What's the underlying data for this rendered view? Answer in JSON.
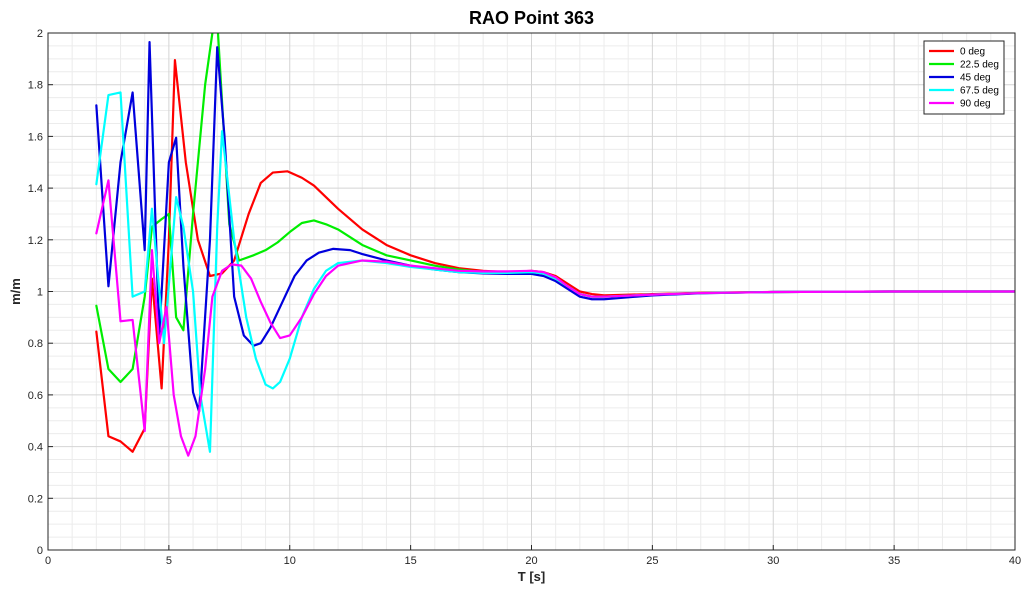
{
  "chart_data": {
    "type": "line",
    "title": "RAO Point 363",
    "xlabel": "T [s]",
    "ylabel": "m/m",
    "xlim": [
      0,
      40
    ],
    "ylim": [
      0,
      2
    ],
    "xticks": [
      "0",
      "5",
      "10",
      "15",
      "20",
      "25",
      "30",
      "35",
      "40"
    ],
    "yticks": [
      "0",
      "0.2",
      "0.4",
      "0.6",
      "0.8",
      "1",
      "1.2",
      "1.4",
      "1.6",
      "1.8",
      "2"
    ],
    "grid": true,
    "minor_grid": true,
    "legend_position": "top-right",
    "series": [
      {
        "name": "0 deg",
        "color": "#ff0000",
        "points": [
          [
            2.0,
            0.845
          ],
          [
            2.5,
            0.44
          ],
          [
            3.0,
            0.42
          ],
          [
            3.5,
            0.38
          ],
          [
            4.0,
            0.47
          ],
          [
            4.3,
            1.05
          ],
          [
            4.7,
            0.625
          ],
          [
            5.0,
            1.2
          ],
          [
            5.25,
            1.895
          ],
          [
            5.7,
            1.5
          ],
          [
            6.2,
            1.2
          ],
          [
            6.7,
            1.06
          ],
          [
            7.2,
            1.07
          ],
          [
            7.7,
            1.12
          ],
          [
            8.3,
            1.3
          ],
          [
            8.8,
            1.42
          ],
          [
            9.3,
            1.46
          ],
          [
            9.9,
            1.465
          ],
          [
            10.5,
            1.44
          ],
          [
            11.0,
            1.41
          ],
          [
            12.0,
            1.32
          ],
          [
            13.0,
            1.24
          ],
          [
            14.0,
            1.18
          ],
          [
            15.0,
            1.14
          ],
          [
            16.0,
            1.11
          ],
          [
            17.0,
            1.09
          ],
          [
            18.0,
            1.08
          ],
          [
            19.0,
            1.075
          ],
          [
            20.0,
            1.08
          ],
          [
            20.5,
            1.075
          ],
          [
            21.0,
            1.06
          ],
          [
            21.5,
            1.03
          ],
          [
            22.0,
            1.0
          ],
          [
            22.5,
            0.99
          ],
          [
            23.0,
            0.985
          ],
          [
            25.0,
            0.99
          ],
          [
            27.0,
            0.995
          ],
          [
            30.0,
            0.998
          ],
          [
            35.0,
            1.0
          ],
          [
            40.0,
            1.0
          ]
        ]
      },
      {
        "name": "22.5 deg",
        "color": "#00ee00",
        "points": [
          [
            2.0,
            0.945
          ],
          [
            2.5,
            0.7
          ],
          [
            3.0,
            0.65
          ],
          [
            3.5,
            0.7
          ],
          [
            4.0,
            0.98
          ],
          [
            4.3,
            1.25
          ],
          [
            4.7,
            1.28
          ],
          [
            5.0,
            1.3
          ],
          [
            5.3,
            0.9
          ],
          [
            5.6,
            0.85
          ],
          [
            6.0,
            1.3
          ],
          [
            6.5,
            1.8
          ],
          [
            6.8,
            2.0
          ],
          [
            7.0,
            2.05
          ],
          [
            7.5,
            1.26
          ],
          [
            7.9,
            1.12
          ],
          [
            8.5,
            1.14
          ],
          [
            9.0,
            1.16
          ],
          [
            9.5,
            1.19
          ],
          [
            10.0,
            1.23
          ],
          [
            10.5,
            1.265
          ],
          [
            11.0,
            1.275
          ],
          [
            11.5,
            1.26
          ],
          [
            12.0,
            1.24
          ],
          [
            13.0,
            1.18
          ],
          [
            14.0,
            1.14
          ],
          [
            15.0,
            1.12
          ],
          [
            16.0,
            1.1
          ],
          [
            17.0,
            1.085
          ],
          [
            18.0,
            1.075
          ],
          [
            19.0,
            1.075
          ],
          [
            20.0,
            1.075
          ],
          [
            20.5,
            1.07
          ],
          [
            21.0,
            1.05
          ],
          [
            21.5,
            1.02
          ],
          [
            22.0,
            0.99
          ],
          [
            22.5,
            0.98
          ],
          [
            23.0,
            0.98
          ],
          [
            25.0,
            0.988
          ],
          [
            27.0,
            0.994
          ],
          [
            30.0,
            0.998
          ],
          [
            35.0,
            1.0
          ],
          [
            40.0,
            1.0
          ]
        ]
      },
      {
        "name": "45 deg",
        "color": "#0000dd",
        "points": [
          [
            2.0,
            1.72
          ],
          [
            2.5,
            1.02
          ],
          [
            3.0,
            1.5
          ],
          [
            3.5,
            1.77
          ],
          [
            4.0,
            1.16
          ],
          [
            4.2,
            1.965
          ],
          [
            4.6,
            0.83
          ],
          [
            5.0,
            1.5
          ],
          [
            5.3,
            1.595
          ],
          [
            5.6,
            1.1
          ],
          [
            6.0,
            0.61
          ],
          [
            6.25,
            0.535
          ],
          [
            6.7,
            1.2
          ],
          [
            7.0,
            1.945
          ],
          [
            7.3,
            1.6
          ],
          [
            7.7,
            0.98
          ],
          [
            8.1,
            0.83
          ],
          [
            8.5,
            0.79
          ],
          [
            8.8,
            0.8
          ],
          [
            9.2,
            0.86
          ],
          [
            9.7,
            0.96
          ],
          [
            10.2,
            1.06
          ],
          [
            10.7,
            1.12
          ],
          [
            11.2,
            1.15
          ],
          [
            11.8,
            1.165
          ],
          [
            12.5,
            1.16
          ],
          [
            13.0,
            1.145
          ],
          [
            14.0,
            1.12
          ],
          [
            15.0,
            1.1
          ],
          [
            16.0,
            1.085
          ],
          [
            17.0,
            1.075
          ],
          [
            18.0,
            1.07
          ],
          [
            19.0,
            1.068
          ],
          [
            20.0,
            1.068
          ],
          [
            20.5,
            1.06
          ],
          [
            21.0,
            1.04
          ],
          [
            21.5,
            1.01
          ],
          [
            22.0,
            0.98
          ],
          [
            22.5,
            0.97
          ],
          [
            23.0,
            0.97
          ],
          [
            25.0,
            0.985
          ],
          [
            27.0,
            0.993
          ],
          [
            30.0,
            0.998
          ],
          [
            35.0,
            1.0
          ],
          [
            40.0,
            1.0
          ]
        ]
      },
      {
        "name": "67.5 deg",
        "color": "#00ffff",
        "points": [
          [
            2.0,
            1.415
          ],
          [
            2.5,
            1.76
          ],
          [
            3.0,
            1.77
          ],
          [
            3.5,
            0.98
          ],
          [
            4.0,
            1.0
          ],
          [
            4.3,
            1.32
          ],
          [
            4.8,
            0.8
          ],
          [
            5.3,
            1.365
          ],
          [
            5.6,
            1.25
          ],
          [
            6.0,
            1.0
          ],
          [
            6.3,
            0.6
          ],
          [
            6.7,
            0.38
          ],
          [
            7.0,
            1.25
          ],
          [
            7.2,
            1.62
          ],
          [
            7.7,
            1.2
          ],
          [
            8.2,
            0.9
          ],
          [
            8.6,
            0.74
          ],
          [
            9.0,
            0.64
          ],
          [
            9.3,
            0.625
          ],
          [
            9.6,
            0.65
          ],
          [
            10.0,
            0.74
          ],
          [
            10.5,
            0.9
          ],
          [
            11.0,
            1.01
          ],
          [
            11.5,
            1.08
          ],
          [
            12.0,
            1.11
          ],
          [
            13.0,
            1.12
          ],
          [
            14.0,
            1.11
          ],
          [
            15.0,
            1.095
          ],
          [
            16.0,
            1.085
          ],
          [
            17.0,
            1.075
          ],
          [
            18.0,
            1.072
          ],
          [
            19.0,
            1.072
          ],
          [
            20.0,
            1.075
          ],
          [
            20.5,
            1.07
          ],
          [
            21.0,
            1.05
          ],
          [
            21.5,
            1.02
          ],
          [
            22.0,
            0.99
          ],
          [
            22.5,
            0.98
          ],
          [
            23.0,
            0.98
          ],
          [
            25.0,
            0.988
          ],
          [
            27.0,
            0.994
          ],
          [
            30.0,
            0.998
          ],
          [
            35.0,
            1.0
          ],
          [
            40.0,
            1.0
          ]
        ]
      },
      {
        "name": "90 deg",
        "color": "#ff00ff",
        "points": [
          [
            2.0,
            1.225
          ],
          [
            2.5,
            1.43
          ],
          [
            3.0,
            0.885
          ],
          [
            3.5,
            0.89
          ],
          [
            4.0,
            0.46
          ],
          [
            4.3,
            1.16
          ],
          [
            4.6,
            0.8
          ],
          [
            4.9,
            0.94
          ],
          [
            5.2,
            0.6
          ],
          [
            5.5,
            0.44
          ],
          [
            5.8,
            0.365
          ],
          [
            6.1,
            0.44
          ],
          [
            6.5,
            0.7
          ],
          [
            6.8,
            0.98
          ],
          [
            7.2,
            1.08
          ],
          [
            7.6,
            1.105
          ],
          [
            8.0,
            1.1
          ],
          [
            8.4,
            1.05
          ],
          [
            8.8,
            0.96
          ],
          [
            9.2,
            0.88
          ],
          [
            9.6,
            0.82
          ],
          [
            10.0,
            0.83
          ],
          [
            10.5,
            0.9
          ],
          [
            11.0,
            0.99
          ],
          [
            11.5,
            1.06
          ],
          [
            12.0,
            1.1
          ],
          [
            13.0,
            1.12
          ],
          [
            14.0,
            1.115
          ],
          [
            15.0,
            1.1
          ],
          [
            16.0,
            1.09
          ],
          [
            17.0,
            1.08
          ],
          [
            18.0,
            1.078
          ],
          [
            19.0,
            1.078
          ],
          [
            20.0,
            1.08
          ],
          [
            20.5,
            1.075
          ],
          [
            21.0,
            1.055
          ],
          [
            21.5,
            1.02
          ],
          [
            22.0,
            0.99
          ],
          [
            22.5,
            0.98
          ],
          [
            23.0,
            0.98
          ],
          [
            25.0,
            0.988
          ],
          [
            27.0,
            0.994
          ],
          [
            30.0,
            0.998
          ],
          [
            35.0,
            1.0
          ],
          [
            40.0,
            1.0
          ]
        ]
      }
    ]
  }
}
